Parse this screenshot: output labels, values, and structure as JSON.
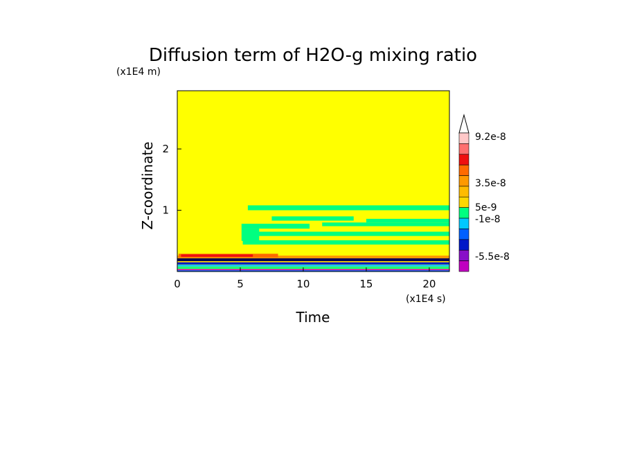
{
  "chart_data": {
    "type": "heatmap",
    "title": "Diffusion term of H2O-g mixing ratio",
    "xlabel": "Time",
    "ylabel": "Z-coordinate",
    "x_unit": "(x1E4 s)",
    "y_unit": "(x1E4 m)",
    "xlim": [
      0,
      21.6
    ],
    "ylim": [
      0,
      2.95
    ],
    "x_ticks": [
      0,
      5,
      10,
      15,
      20
    ],
    "y_ticks": [
      1,
      2
    ],
    "background_color": "#ffff00",
    "colorbar": {
      "labels": [
        {
          "text": "9.2e-8",
          "value": 9.2e-08
        },
        {
          "text": "3.5e-8",
          "value": 3.5e-08
        },
        {
          "text": "5e-9",
          "value": 5e-09
        },
        {
          "text": "-1e-8",
          "value": -1e-08
        },
        {
          "text": "-5.5e-8",
          "value": -5.5e-08
        }
      ],
      "colors_top_to_bottom": [
        "#ffc8c8",
        "#ff7070",
        "#ee1010",
        "#ff6a00",
        "#ff9900",
        "#ffbb00",
        "#ffd700",
        "#00ff80",
        "#00c8ff",
        "#0060ff",
        "#0018c8",
        "#8810c8",
        "#c000c0"
      ]
    },
    "regions": [
      {
        "color": "#ffd700",
        "x0": 0.0,
        "x1": 21.6,
        "z0": 0.14,
        "z1": 0.25
      },
      {
        "color": "#ff9900",
        "x0": 0.0,
        "x1": 21.6,
        "z0": 0.2,
        "z1": 0.26
      },
      {
        "color": "#ff6a00",
        "x0": 0.1,
        "x1": 8.0,
        "z0": 0.23,
        "z1": 0.29
      },
      {
        "color": "#ee1010",
        "x0": 0.3,
        "x1": 6.0,
        "z0": 0.24,
        "z1": 0.28
      },
      {
        "color": "#000050",
        "x0": 0.0,
        "x1": 21.6,
        "z0": 0.17,
        "z1": 0.215
      },
      {
        "color": "#0018c8",
        "x0": 0.0,
        "x1": 21.6,
        "z0": 0.115,
        "z1": 0.15
      },
      {
        "color": "#00c8ff",
        "x0": 0.0,
        "x1": 21.6,
        "z0": 0.08,
        "z1": 0.11
      },
      {
        "color": "#00ff80",
        "x0": 0.0,
        "x1": 21.6,
        "z0": 0.045,
        "z1": 0.075
      },
      {
        "color": "#c000c0",
        "x0": 0.0,
        "x1": 21.6,
        "z0": 0.02,
        "z1": 0.04
      },
      {
        "color": "#0060ff",
        "x0": 0.0,
        "x1": 21.6,
        "z0": 0.0,
        "z1": 0.02
      },
      {
        "color": "#00ff80",
        "x0": 5.6,
        "x1": 21.6,
        "z0": 1.0,
        "z1": 1.08
      },
      {
        "color": "#00ff80",
        "x0": 5.3,
        "x1": 21.6,
        "z0": 0.58,
        "z1": 0.65
      },
      {
        "color": "#00ff80",
        "x0": 5.2,
        "x1": 21.6,
        "z0": 0.44,
        "z1": 0.51
      },
      {
        "color": "#00ff80",
        "x0": 5.1,
        "x1": 10.5,
        "z0": 0.7,
        "z1": 0.78
      },
      {
        "color": "#00ff80",
        "x0": 11.5,
        "x1": 21.6,
        "z0": 0.74,
        "z1": 0.8
      },
      {
        "color": "#00ff80",
        "x0": 7.5,
        "x1": 14.0,
        "z0": 0.83,
        "z1": 0.9
      },
      {
        "color": "#00ff80",
        "x0": 15.0,
        "x1": 21.6,
        "z0": 0.8,
        "z1": 0.86
      },
      {
        "color": "#00ff80",
        "x0": 5.1,
        "x1": 6.5,
        "z0": 0.5,
        "z1": 0.7
      }
    ]
  }
}
